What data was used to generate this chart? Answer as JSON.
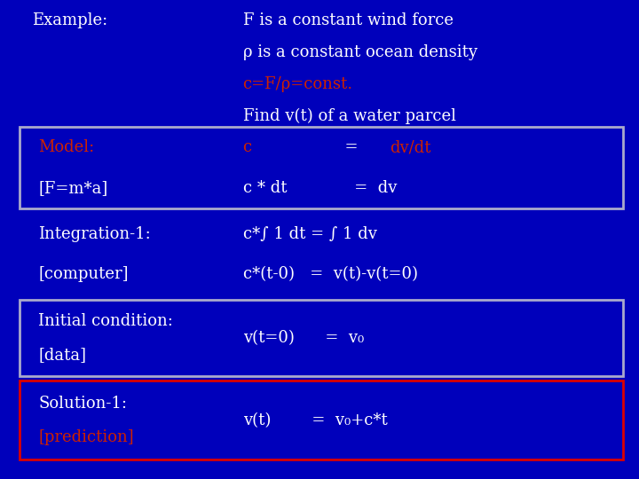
{
  "bg_color": "#0000bb",
  "text_color_white": "#ffffff",
  "text_color_red": "#cc2200",
  "title_left": "Example:",
  "title_right_lines": [
    [
      "white",
      "F is a constant wind force"
    ],
    [
      "white",
      "ρ is a constant ocean density"
    ],
    [
      "red",
      "c=F/ρ=const."
    ],
    [
      "white",
      "Find v(t) of a water parcel"
    ]
  ],
  "rows": [
    {
      "label_line1": "Model:",
      "label_color1": "red",
      "label_line2": "[F=m*a]",
      "label_color2": "white",
      "content_line1": [
        "red",
        "c",
        "white",
        "          =  ",
        "red",
        "dv/dt"
      ],
      "content_line2": [
        "white",
        "c * dt",
        "white",
        "   =  dv"
      ],
      "box": true,
      "box_edge_color": "#aaaacc",
      "ytop": 0.735,
      "ybot": 0.565
    },
    {
      "label_line1": "Integration-1:",
      "label_color1": "white",
      "label_line2": "[computer]",
      "label_color2": "white",
      "content_line1": [
        "white",
        "c*∫ 1 dt = ∫ 1 dv"
      ],
      "content_line2": [
        "white",
        "c*(t-0)   =  v(t)-v(t=0)"
      ],
      "box": false,
      "ytop": 0.555,
      "ybot": 0.385
    },
    {
      "label_line1": "Initial condition:",
      "label_color1": "white",
      "label_line2": "[data]",
      "label_color2": "white",
      "content_line1": [
        "white",
        "v(t=0)      =  v₀"
      ],
      "content_line2": null,
      "box": true,
      "box_edge_color": "#aaaacc",
      "ytop": 0.375,
      "ybot": 0.215
    },
    {
      "label_line1": "Solution-1:",
      "label_color1": "white",
      "label_line2": "[prediction]",
      "label_color2": "red",
      "content_line1": [
        "white",
        "v(t)        =  v₀+c*t"
      ],
      "content_line2": null,
      "box": true,
      "box_edge_color": "#dd0000",
      "ytop": 0.205,
      "ybot": 0.04
    }
  ],
  "fontsize": 13,
  "fontfamily": "DejaVu Serif"
}
